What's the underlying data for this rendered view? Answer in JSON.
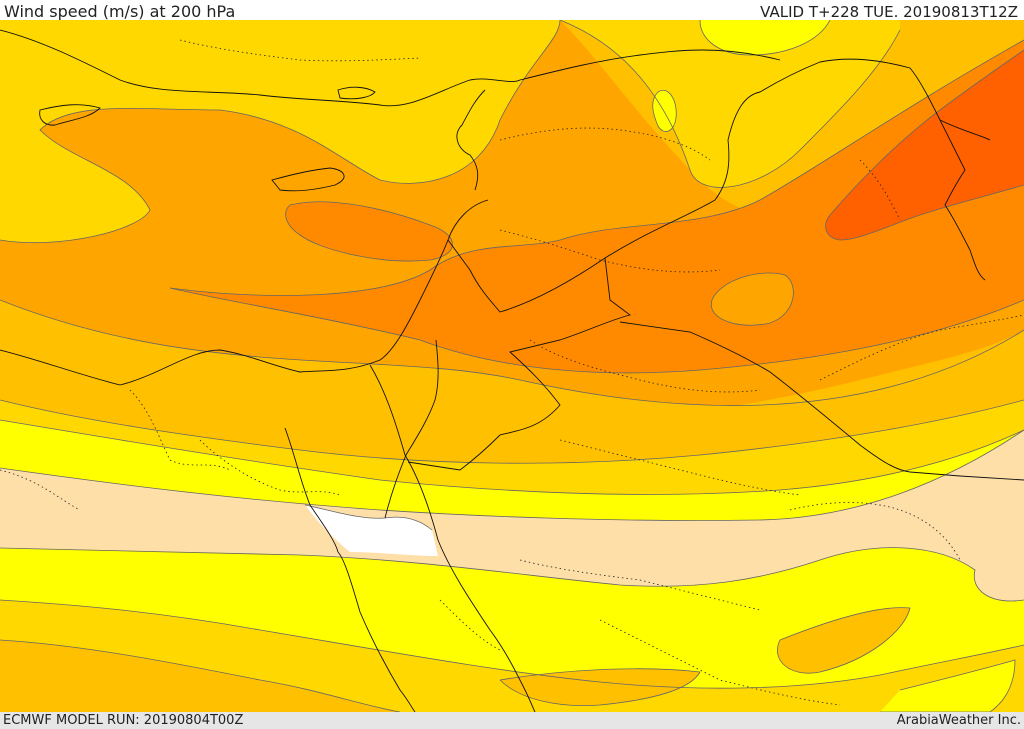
{
  "header": {
    "title": "Wind speed (m/s) at 200 hPa",
    "valid_time": "VALID T+228 TUE. 20190813T12Z"
  },
  "footer": {
    "model_run": "ECMWF MODEL RUN: 20190804T00Z",
    "credit": "ArabiaWeather Inc."
  },
  "map": {
    "variable": "wind speed",
    "level": "200 hPa",
    "colors": {
      "band_1": "#ffffff",
      "band_2": "#ffdfa8",
      "band_3": "#ffff00",
      "band_4": "#ffd800",
      "band_5": "#ffc000",
      "band_6": "#ffa500",
      "band_7": "#ff8a00",
      "band_8": "#ff7700",
      "band_9": "#ff6000",
      "contour": "#666666",
      "border": "#111111"
    }
  }
}
